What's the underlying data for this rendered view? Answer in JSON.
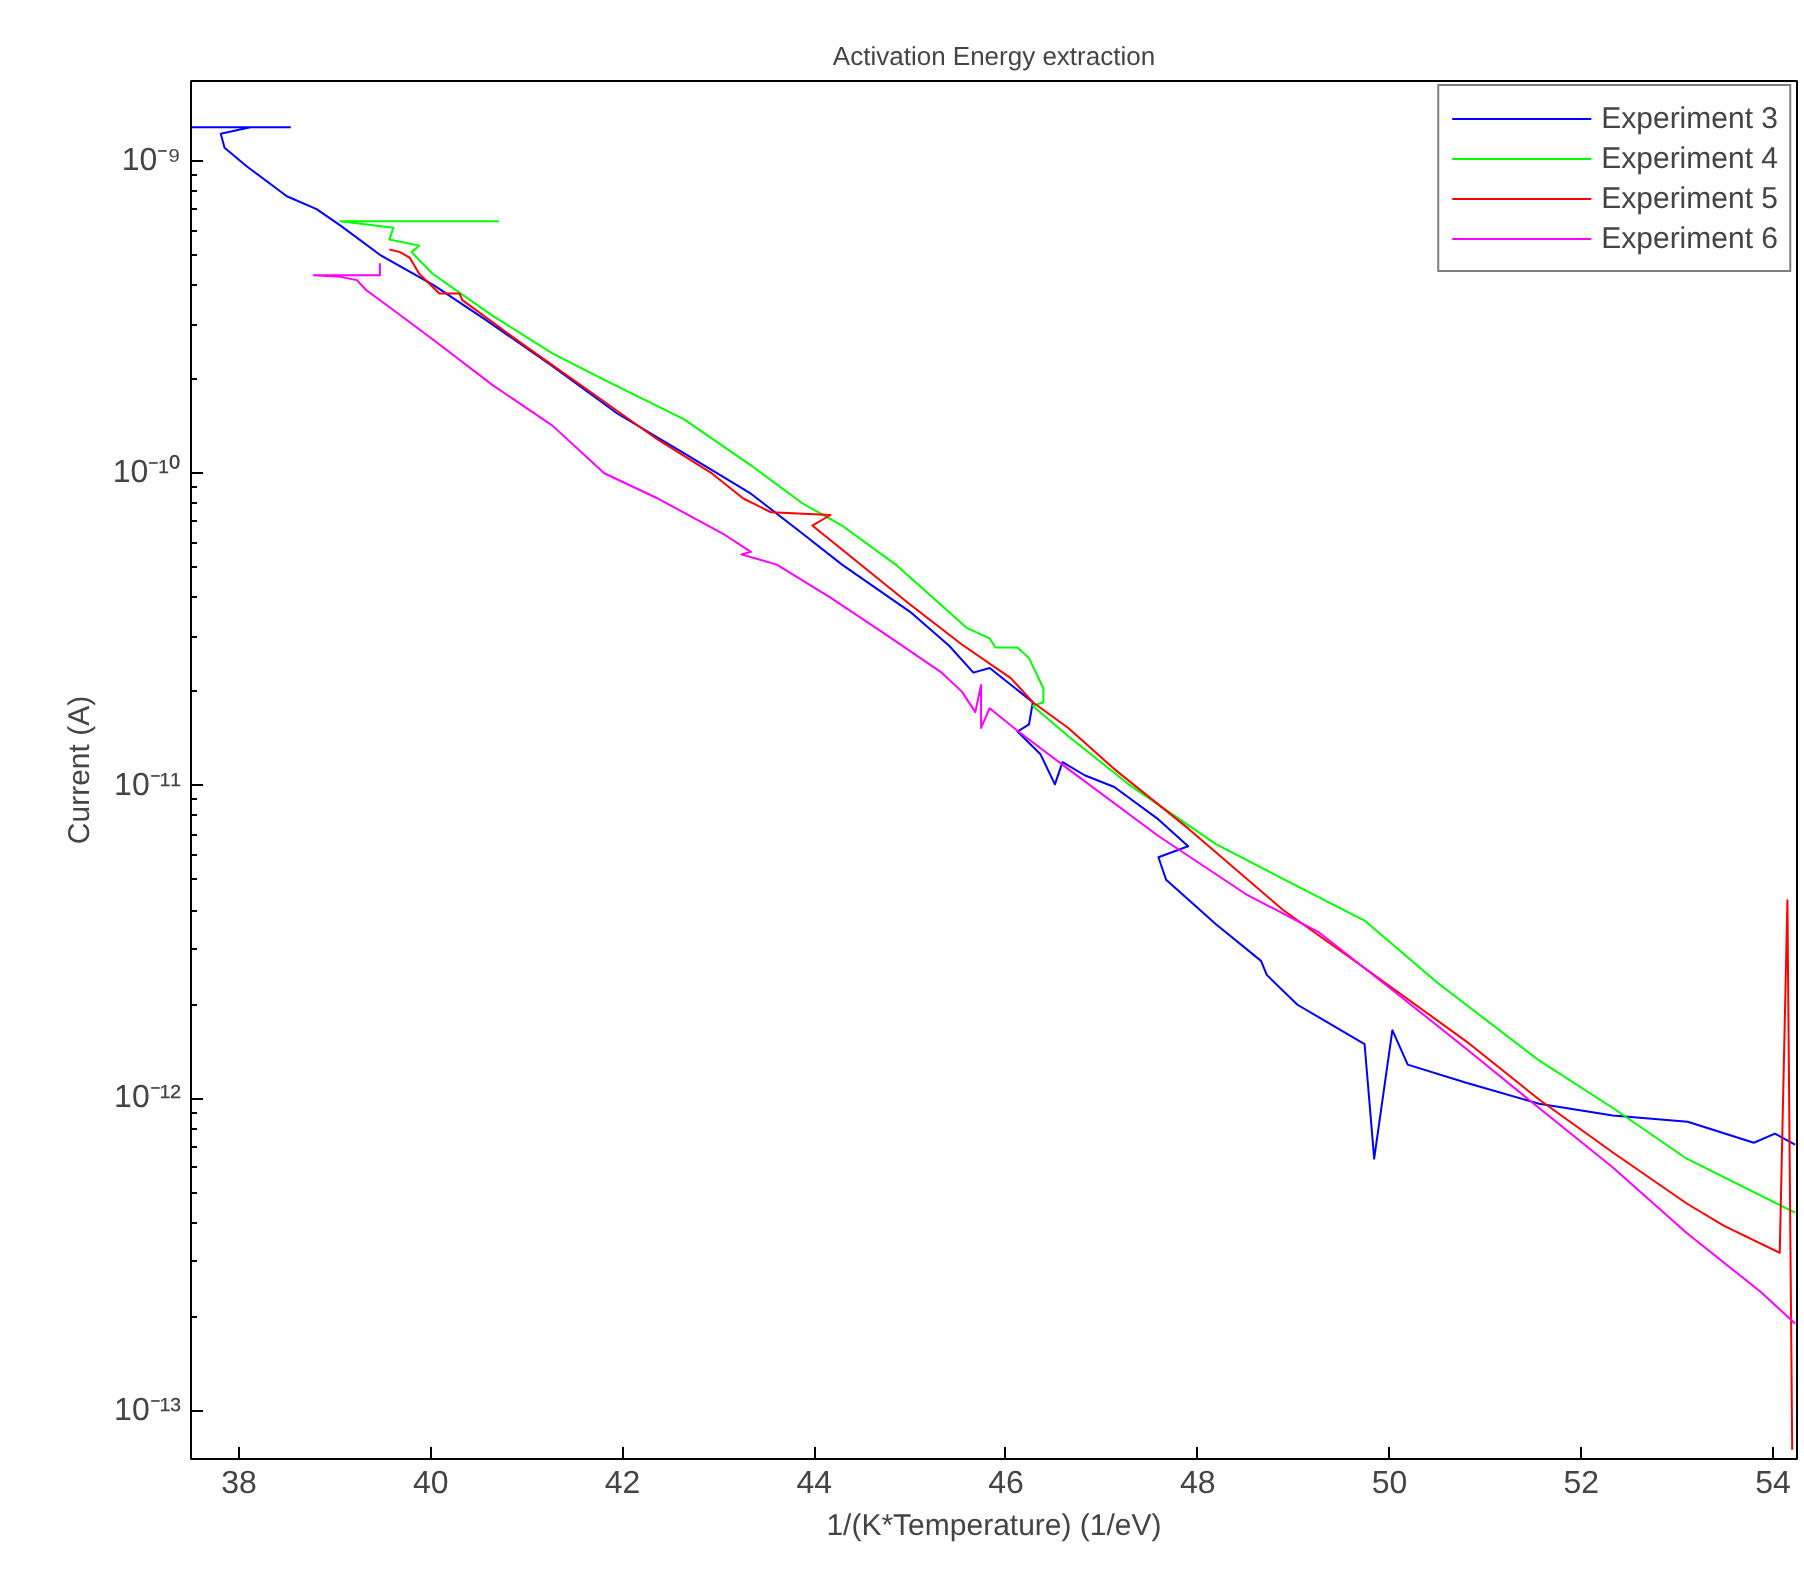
{
  "chart_data": {
    "type": "line",
    "title": "Activation Energy extraction",
    "xlabel": "1/(K*Temperature) (1/eV)",
    "ylabel": "Current (A)",
    "log": "y",
    "grid": false,
    "legend": "top right",
    "line_style": "solid",
    "marker": "none",
    "xlim": [
      37.5,
      54.25
    ],
    "xticks": [
      38,
      40,
      42,
      44,
      46,
      48,
      50,
      52,
      54
    ],
    "ylim": [
      7e-14,
      1.8e-09
    ],
    "yticks": [
      {
        "value": 1e-09,
        "label": "10⁻⁹"
      },
      {
        "value": 1e-10,
        "label": "10⁻¹⁰"
      },
      {
        "value": 1e-11,
        "label": "10⁻¹¹"
      },
      {
        "value": 1e-12,
        "label": "10⁻¹²"
      },
      {
        "value": 1e-13,
        "label": "10⁻¹³"
      }
    ],
    "series": [
      {
        "name": "Experiment 3",
        "color": "#0000ff",
        "x": [
          38.54,
          37.5,
          38.12,
          37.81,
          37.85,
          38.08,
          38.5,
          38.81,
          39.06,
          39.47,
          40.03,
          40.57,
          41.27,
          41.95,
          42.64,
          43.34,
          43.88,
          44.29,
          45.0,
          45.41,
          45.66,
          45.83,
          46.28,
          46.24,
          46.12,
          46.36,
          46.51,
          46.59,
          46.82,
          47.13,
          47.59,
          47.9,
          47.59,
          47.67,
          48.19,
          48.66,
          48.72,
          49.04,
          49.74,
          49.84,
          50.03,
          50.19,
          50.8,
          51.56,
          52.33,
          53.11,
          53.8,
          54.02,
          54.23
        ],
        "values": [
          1.28e-09,
          1.28e-09,
          1.28e-09,
          1.22e-09,
          1.1e-09,
          9.6e-10,
          7.7e-10,
          7e-10,
          6.2e-10,
          5e-10,
          4e-10,
          3.1e-10,
          2.2e-10,
          1.55e-10,
          1.16e-10,
          8.6e-11,
          6.4e-11,
          5.1e-11,
          3.6e-11,
          2.8e-11,
          2.3e-11,
          2.38e-11,
          1.85e-11,
          1.57e-11,
          1.49e-11,
          1.26e-11,
          1.01e-11,
          1.19e-11,
          1.08e-11,
          9.9e-12,
          7.8e-12,
          6.4e-12,
          5.9e-12,
          5e-12,
          3.6e-12,
          2.75e-12,
          2.48e-12,
          1.99e-12,
          1.49e-12,
          6.4e-13,
          1.65e-12,
          1.28e-12,
          1.12e-12,
          9.6e-13,
          8.8e-13,
          8.4e-13,
          7.2e-13,
          7.7e-13,
          7.1e-13
        ]
      },
      {
        "name": "Experiment 4",
        "color": "#00ff00",
        "x": [
          40.71,
          39.06,
          39.61,
          39.57,
          39.88,
          39.8,
          40.02,
          40.64,
          41.27,
          41.81,
          42.64,
          43.34,
          43.88,
          44.29,
          44.85,
          45.59,
          45.83,
          45.89,
          46.12,
          46.24,
          46.39,
          46.39,
          46.28,
          46.65,
          47.28,
          48.19,
          49.26,
          49.74,
          50.5,
          51.56,
          52.33,
          53.1,
          54.23
        ],
        "values": [
          6.4e-10,
          6.4e-10,
          6.1e-10,
          5.6e-10,
          5.35e-10,
          5.1e-10,
          4.35e-10,
          3.2e-10,
          2.42e-10,
          1.99e-10,
          1.49e-10,
          1.06e-10,
          8e-11,
          6.8e-11,
          5.1e-11,
          3.2e-11,
          2.96e-11,
          2.77e-11,
          2.77e-11,
          2.56e-11,
          2.05e-11,
          1.85e-11,
          1.8e-11,
          1.44e-11,
          1.01e-11,
          6.5e-12,
          4.4e-12,
          3.7e-12,
          2.34e-12,
          1.32e-12,
          9.3e-13,
          6.4e-13,
          4.3e-13
        ]
      },
      {
        "name": "Experiment 5",
        "color": "#ff0000",
        "x": [
          39.57,
          39.68,
          39.78,
          39.88,
          40.09,
          40.3,
          40.33,
          40.98,
          41.69,
          42.37,
          42.93,
          43.26,
          43.55,
          44.17,
          43.98,
          44.29,
          45.0,
          45.54,
          46.05,
          46.28,
          46.65,
          47.13,
          47.9,
          48.89,
          49.74,
          50.8,
          51.56,
          52.33,
          53.1,
          53.49,
          54.07,
          54.15,
          54.2
        ],
        "values": [
          5.2e-10,
          5.1e-10,
          4.9e-10,
          4.35e-10,
          3.76e-10,
          3.76e-10,
          3.58e-10,
          2.56e-10,
          1.8e-10,
          1.28e-10,
          1e-10,
          8.3e-11,
          7.5e-11,
          7.35e-11,
          6.8e-11,
          5.7e-11,
          3.8e-11,
          2.83e-11,
          2.21e-11,
          1.85e-11,
          1.53e-11,
          1.13e-11,
          7.3e-12,
          4e-12,
          2.61e-12,
          1.52e-12,
          9.9e-13,
          6.7e-13,
          4.6e-13,
          3.9e-13,
          3.2e-13,
          4.3e-12,
          7.5e-14
        ]
      },
      {
        "name": "Experiment 6",
        "color": "#ff00ff",
        "x": [
          39.47,
          39.47,
          38.78,
          39.06,
          39.23,
          39.33,
          39.61,
          40.03,
          40.65,
          41.27,
          41.81,
          42.37,
          43.05,
          43.34,
          43.24,
          43.61,
          44.17,
          44.71,
          45.33,
          45.54,
          45.68,
          45.74,
          45.74,
          45.83,
          46.13,
          46.65,
          47.59,
          48.5,
          49.26,
          50.03,
          50.8,
          51.56,
          52.33,
          53.1,
          53.87,
          54.23
        ],
        "values": [
          4.7e-10,
          4.3e-10,
          4.3e-10,
          4.25e-10,
          4.15e-10,
          3.85e-10,
          3.33e-10,
          2.67e-10,
          1.91e-10,
          1.42e-10,
          1e-10,
          8.3e-11,
          6.4e-11,
          5.6e-11,
          5.5e-11,
          5.1e-11,
          4e-11,
          3.1e-11,
          2.3e-11,
          2e-11,
          1.72e-11,
          2.1e-11,
          1.53e-11,
          1.77e-11,
          1.49e-11,
          1.13e-11,
          6.9e-12,
          4.5e-12,
          3.4e-12,
          2.22e-12,
          1.44e-12,
          9.3e-13,
          6e-13,
          3.7e-13,
          2.4e-13,
          1.9e-13
        ]
      }
    ]
  }
}
